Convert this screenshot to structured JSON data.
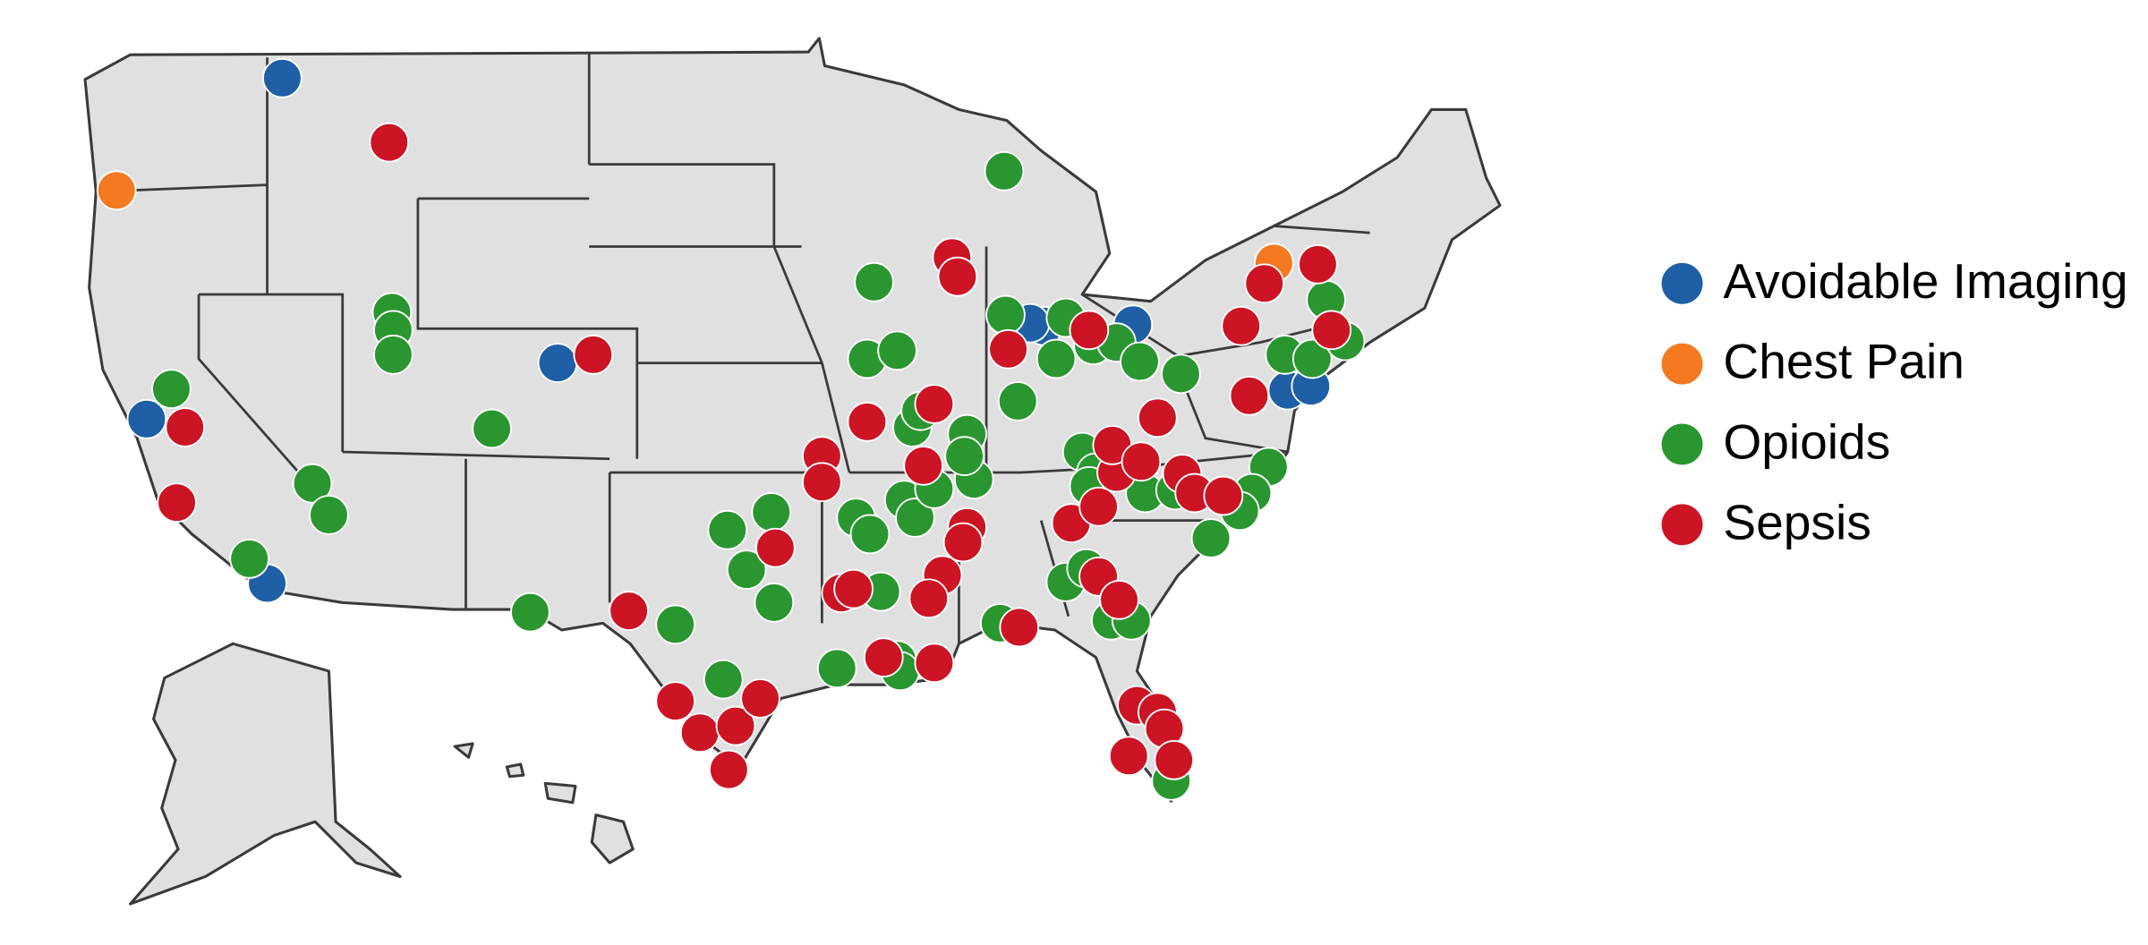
{
  "legend": {
    "entries": [
      {
        "name": "Avoidable Imaging",
        "color": "#1f5fa6"
      },
      {
        "name": "Chest Pain",
        "color": "#f47920"
      },
      {
        "name": "Opioids",
        "color": "#2a9630"
      },
      {
        "name": "Sepsis",
        "color": "#cc1424"
      }
    ]
  }
}
